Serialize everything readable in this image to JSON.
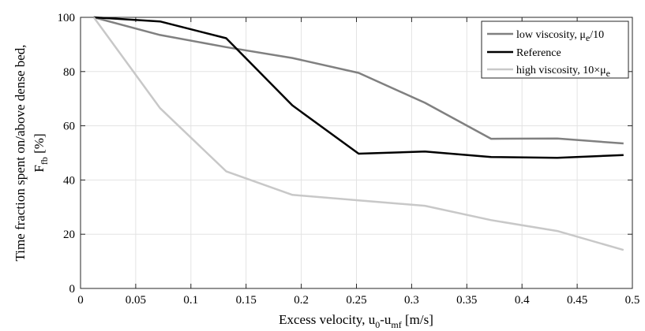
{
  "chart_data": {
    "type": "line",
    "xlabel": "Excess velocity, u0-umf [m/s]",
    "xlabel_parts": {
      "main": "Excess velocity, u",
      "sub1": "0",
      "mid": "-u",
      "sub2": "mf",
      "tail": " [m/s]"
    },
    "ylabel": "Time fraction spent on/above dense bed, Ffb [%]",
    "ylabel_parts": {
      "line1": "Time fraction spent on/above dense bed,",
      "line2_main": "F",
      "line2_sub": "fb",
      "line2_tail": " [%]"
    },
    "xlim": [
      0,
      0.5
    ],
    "ylim": [
      0,
      100
    ],
    "xticks": [
      "0",
      "0.05",
      "0.1",
      "0.15",
      "0.2",
      "0.25",
      "0.3",
      "0.35",
      "0.4",
      "0.45",
      "0.5"
    ],
    "yticks": [
      "0",
      "20",
      "40",
      "60",
      "80",
      "100"
    ],
    "grid": true,
    "legend_position": "top-right",
    "series": [
      {
        "name": "low viscosity, μe/10",
        "name_parts": {
          "main": "low viscosity, μ",
          "sub": "e",
          "tail": "/10"
        },
        "color": "#808080",
        "x": [
          0.012,
          0.072,
          0.132,
          0.192,
          0.252,
          0.312,
          0.372,
          0.432,
          0.492
        ],
        "y": [
          100,
          93.5,
          89,
          85,
          79.5,
          68.5,
          55.2,
          55.3,
          53.5
        ]
      },
      {
        "name": "Reference",
        "name_parts": {
          "main": "Reference",
          "sub": "",
          "tail": ""
        },
        "color": "#000000",
        "x": [
          0.012,
          0.072,
          0.132,
          0.192,
          0.252,
          0.312,
          0.372,
          0.432,
          0.492
        ],
        "y": [
          100,
          98.5,
          92.3,
          67.5,
          49.7,
          50.5,
          48.5,
          48.2,
          49.2
        ]
      },
      {
        "name": "high viscosity, 10×μe",
        "name_parts": {
          "main": "high viscosity, 10×μ",
          "sub": "e",
          "tail": ""
        },
        "color": "#c8c8c8",
        "x": [
          0.012,
          0.072,
          0.132,
          0.192,
          0.252,
          0.312,
          0.372,
          0.432,
          0.492
        ],
        "y": [
          100,
          66.5,
          43.2,
          34.5,
          32.5,
          30.5,
          25.2,
          21.2,
          14.2
        ]
      }
    ]
  }
}
